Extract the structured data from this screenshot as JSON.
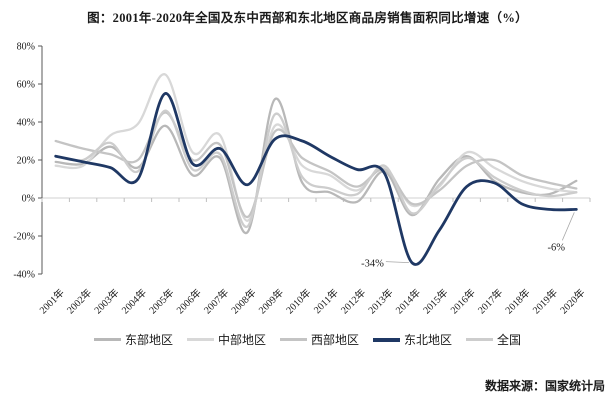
{
  "header": {
    "title": "图：2001年-2020年全国及东中西部和东北地区商品房销售面积同比增速（%）"
  },
  "footer": {
    "source_note": "数据来源：国家统计局"
  },
  "colors": {
    "axis": "#595959",
    "x_tick": "#bfbfbf",
    "zero_line": "#d9d9d9",
    "leader": "#a6a6a6",
    "text": "#1a1a1a",
    "accent_navy": "#1f3864"
  },
  "chart_data": {
    "type": "line",
    "smoothed": true,
    "title": "图：2001年-2020年全国及东中西部和东北地区商品房销售面积同比增速（%）",
    "x_categories": [
      "2001年",
      "2002年",
      "2003年",
      "2004年",
      "2005年",
      "2006年",
      "2007年",
      "2008年",
      "2009年",
      "2010年",
      "2011年",
      "2012年",
      "2013年",
      "2014年",
      "2015年",
      "2016年",
      "2017年",
      "2018年",
      "2019年",
      "2020年"
    ],
    "ylim": [
      -40,
      80
    ],
    "yticks": [
      80,
      60,
      40,
      20,
      0,
      -20,
      -40
    ],
    "ytick_labels": [
      "80%",
      "60%",
      "40%",
      "20%",
      "0%",
      "-20%",
      "-40%"
    ],
    "grid": "zero-line-only",
    "legend_position": "bottom",
    "series": [
      {
        "key": "east",
        "name": "东部地区",
        "color": "#b8b8b8",
        "line_width": 2.3,
        "emphasis": false,
        "values": [
          19,
          18,
          27,
          16,
          38,
          12,
          21,
          -18,
          52,
          8,
          3,
          -2,
          14,
          -9,
          10,
          22,
          9,
          3,
          2,
          9
        ]
      },
      {
        "key": "central",
        "name": "中部地区",
        "color": "#d8d8d8",
        "line_width": 2.3,
        "emphasis": false,
        "values": [
          17,
          17,
          33,
          39,
          65,
          24,
          33,
          -12,
          38,
          17,
          12,
          4,
          16,
          -4,
          6,
          24,
          16,
          9,
          5,
          3
        ]
      },
      {
        "key": "west",
        "name": "西部地区",
        "color": "#c4c4c4",
        "line_width": 2.3,
        "emphasis": false,
        "values": [
          30,
          26,
          23,
          20,
          45,
          20,
          28,
          -10,
          35,
          21,
          14,
          6,
          15,
          -3,
          4,
          17,
          20,
          12,
          8,
          5
        ]
      },
      {
        "key": "northeast",
        "name": "东北地区",
        "color": "#1f3864",
        "line_width": 2.8,
        "emphasis": true,
        "values": [
          22,
          19,
          16,
          10,
          55,
          18,
          26,
          7,
          31,
          30,
          22,
          15,
          13,
          -34,
          -17,
          6,
          8,
          -3,
          -6,
          -6
        ]
      },
      {
        "key": "national",
        "name": "全国",
        "color": "#cdcdcd",
        "line_width": 2.3,
        "emphasis": false,
        "values": [
          22,
          20,
          29,
          14,
          46,
          15,
          23,
          -15,
          44,
          11,
          5,
          2,
          17,
          -8,
          7,
          21,
          11,
          4,
          1,
          3
        ]
      }
    ],
    "annotations": [
      {
        "text": "-34%",
        "series_key": "northeast",
        "category": "2014年",
        "value": -34
      },
      {
        "text": "-6%",
        "series_key": "northeast",
        "category": "2020年",
        "value": -6
      }
    ]
  }
}
